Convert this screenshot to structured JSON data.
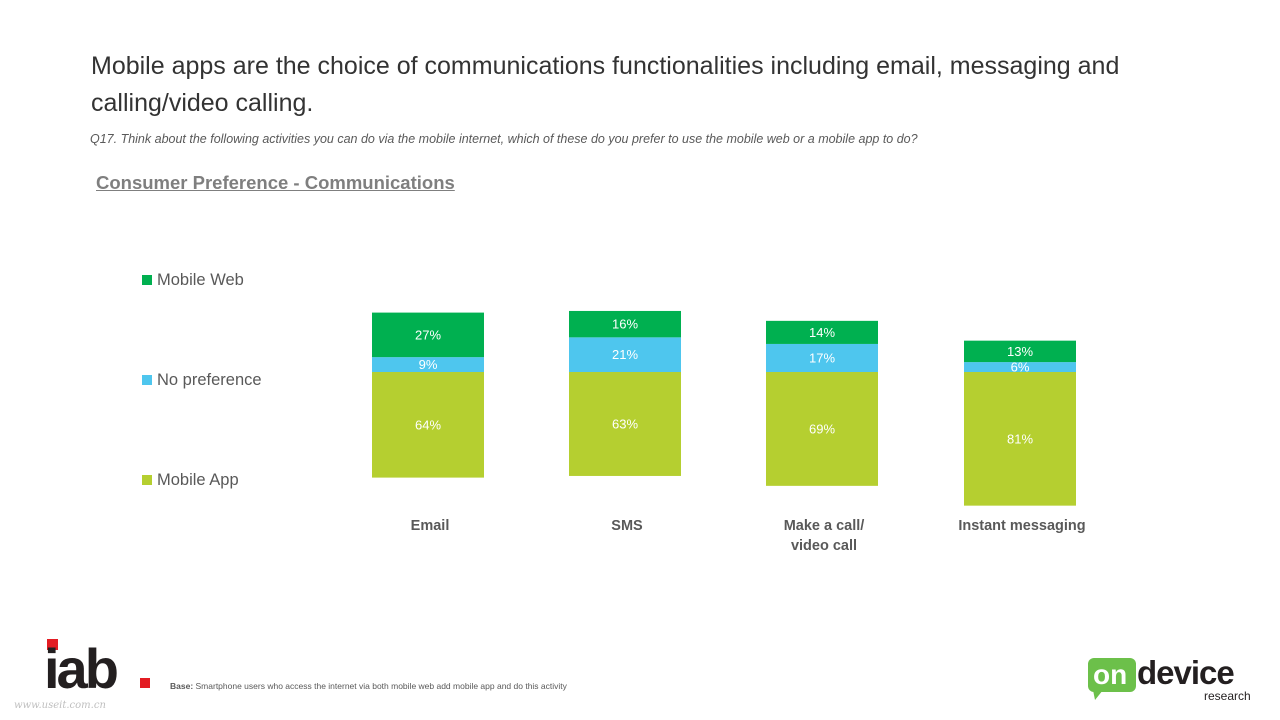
{
  "header": {
    "headline": "Mobile apps are the choice of communications functionalities including email, messaging and calling/video calling.",
    "question": "Q17. Think about the following activities you can do via the mobile internet, which of these do you prefer to use the mobile web or a mobile app to do?",
    "section_title": "Consumer Preference - Communications"
  },
  "legend": [
    {
      "label": "Mobile Web",
      "color": "#00b050"
    },
    {
      "label": "No preference",
      "color": "#4ec6ee"
    },
    {
      "label": "Mobile App",
      "color": "#b5cf30"
    }
  ],
  "chart_data": {
    "type": "bar",
    "stacked": true,
    "categories": [
      [
        "Email"
      ],
      [
        "SMS"
      ],
      [
        "Make a call/",
        "video call"
      ],
      [
        "Instant messaging"
      ]
    ],
    "series": [
      {
        "name": "Mobile App",
        "color": "#b5cf30",
        "values": [
          64,
          63,
          69,
          81
        ]
      },
      {
        "name": "No preference",
        "color": "#4ec6ee",
        "values": [
          9,
          21,
          17,
          6
        ]
      },
      {
        "name": "Mobile Web",
        "color": "#00b050",
        "values": [
          27,
          16,
          14,
          13
        ]
      }
    ],
    "value_suffix": "%",
    "legend_position": "left",
    "grid": false,
    "axes_visible": false
  },
  "footer": {
    "base_label": "Base:",
    "base_text": " Smartphone users who access the internet via both mobile web add mobile app and do this activity",
    "watermark": "www.useit.com.cn",
    "iab_logo_text": "iab",
    "ondevice_logo": {
      "on": "on",
      "device": "device",
      "research": "research"
    }
  }
}
